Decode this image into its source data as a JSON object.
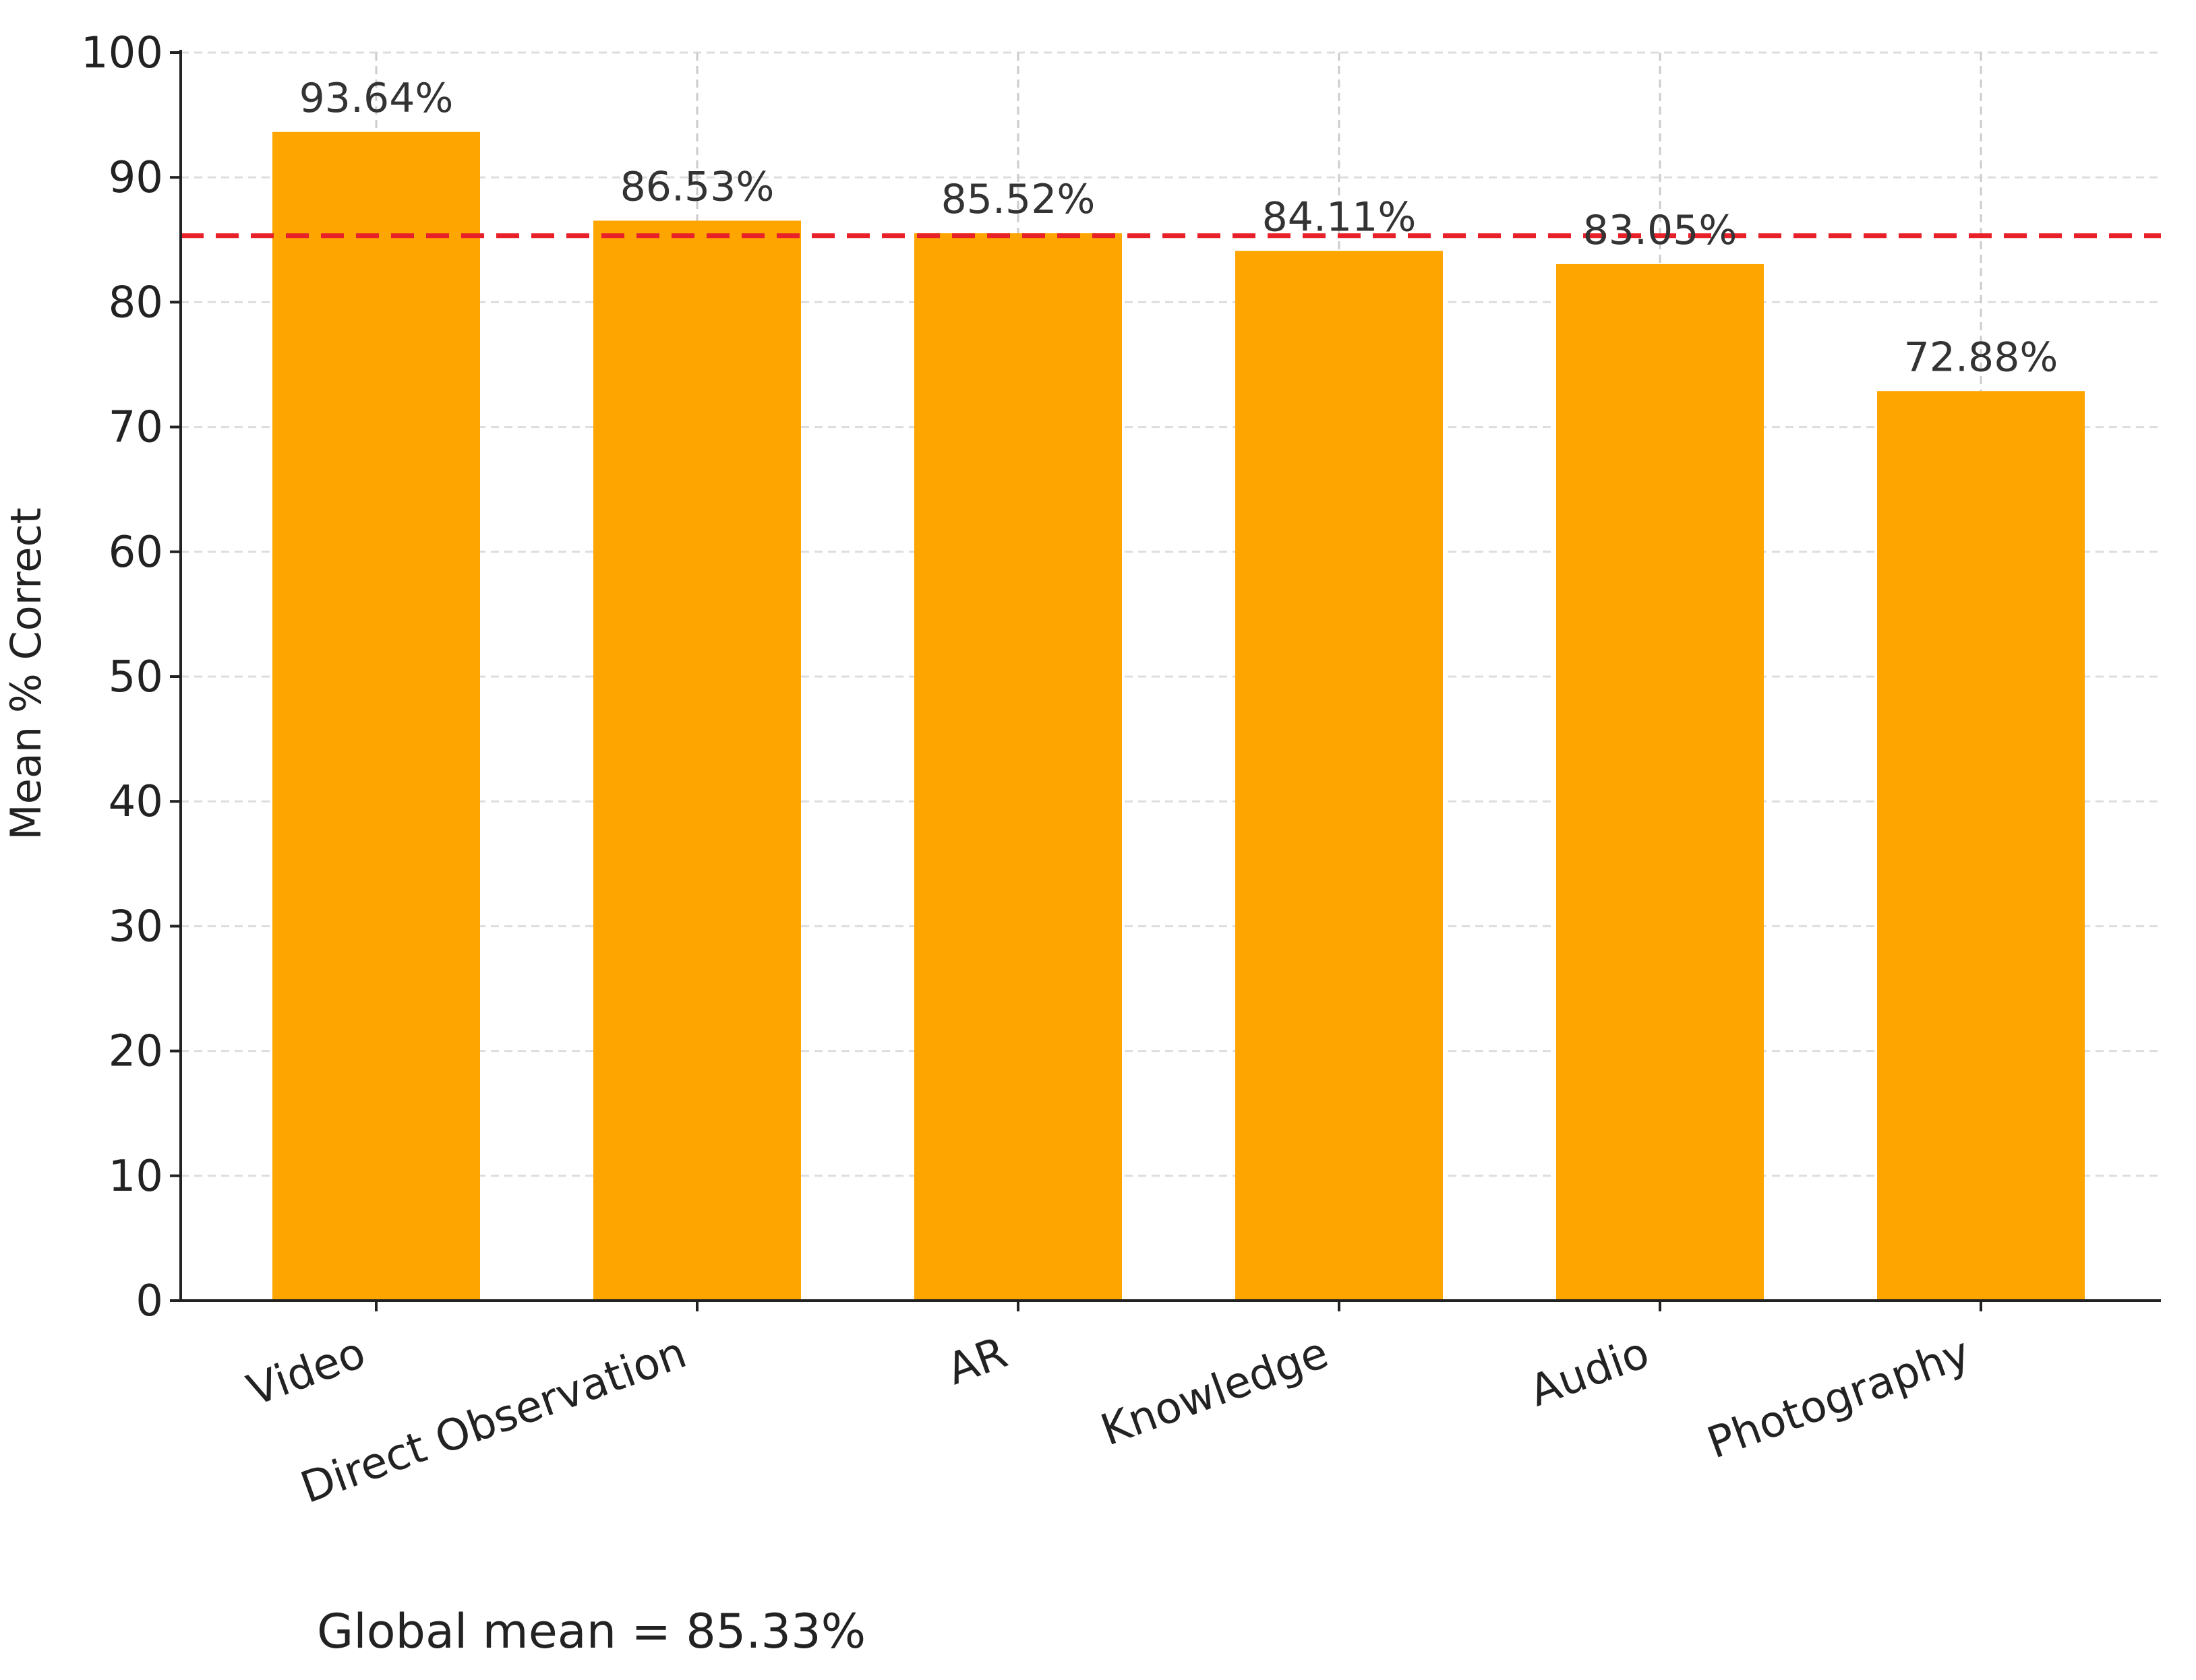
{
  "chart_data": {
    "type": "bar",
    "categories": [
      "Video",
      "Direct Observation",
      "AR",
      "Knowledge",
      "Audio",
      "Photography"
    ],
    "values": [
      93.64,
      86.53,
      85.52,
      84.11,
      83.05,
      72.88
    ],
    "value_labels": [
      "93.64%",
      "86.53%",
      "85.52%",
      "84.11%",
      "83.05%",
      "72.88%"
    ],
    "ylabel": "Mean % Correct",
    "xlabel": "",
    "ylim": [
      0,
      100
    ],
    "yticks": [
      0,
      10,
      20,
      30,
      40,
      50,
      60,
      70,
      80,
      90,
      100
    ],
    "grid": true,
    "bar_color": "#FFA500",
    "reference_line": {
      "value": 85.33,
      "color": "#E8202A",
      "style": "dashed"
    },
    "footnote": "Global mean = 85.33%"
  }
}
